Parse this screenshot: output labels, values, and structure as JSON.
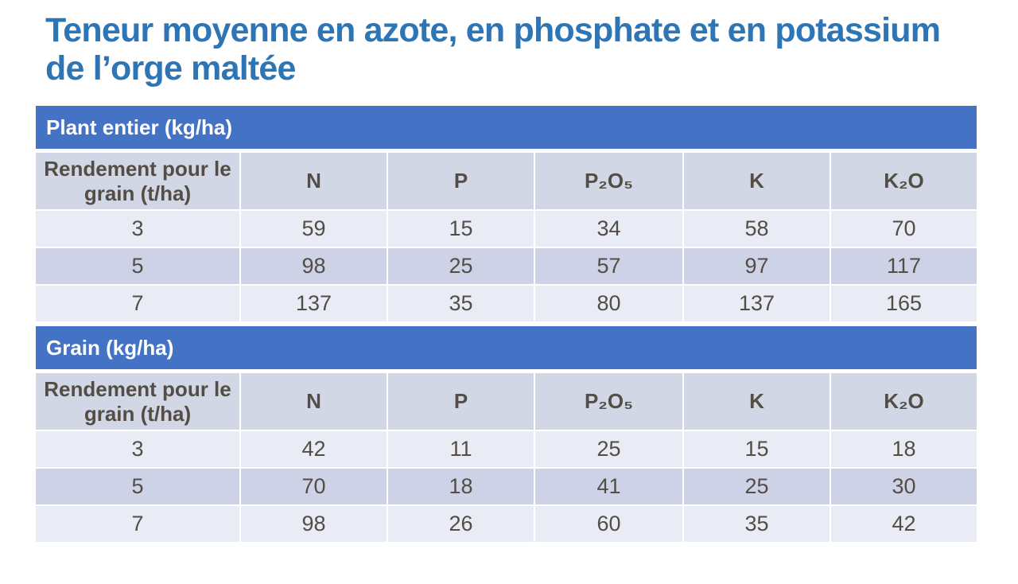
{
  "slide": {
    "title_lines": [
      "Teneur moyenne en azote, en phosphate et en potassium",
      "de l’orge maltée"
    ],
    "title_full": "Teneur moyenne en azote, en phosphate et en potassium de l’orge maltée"
  },
  "colors": {
    "title_text": "#2E75B6",
    "banner_bg": "#4472C4",
    "banner_text": "#FFFFFF",
    "header_row_bg": "#D2D7E6",
    "row_light_bg": "#E9EBF5",
    "row_band_bg": "#CDD2E6",
    "cell_text": "#534D45",
    "page_bg": "#FFFFFF"
  },
  "chart_data": [
    {
      "type": "table",
      "title": "Plant entier (kg/ha)",
      "columns": [
        "Rendement pour le grain (t/ha)",
        "N",
        "P",
        "P₂O₅",
        "K",
        "K₂O"
      ],
      "rows": [
        [
          3,
          59,
          15,
          34,
          58,
          70
        ],
        [
          5,
          98,
          25,
          57,
          97,
          117
        ],
        [
          7,
          137,
          35,
          80,
          137,
          165
        ]
      ]
    },
    {
      "type": "table",
      "title": "Grain (kg/ha)",
      "columns": [
        "Rendement pour le grain (t/ha)",
        "N",
        "P",
        "P₂O₅",
        "K",
        "K₂O"
      ],
      "rows": [
        [
          3,
          42,
          11,
          25,
          15,
          18
        ],
        [
          5,
          70,
          18,
          41,
          25,
          30
        ],
        [
          7,
          98,
          26,
          60,
          35,
          42
        ]
      ]
    }
  ]
}
